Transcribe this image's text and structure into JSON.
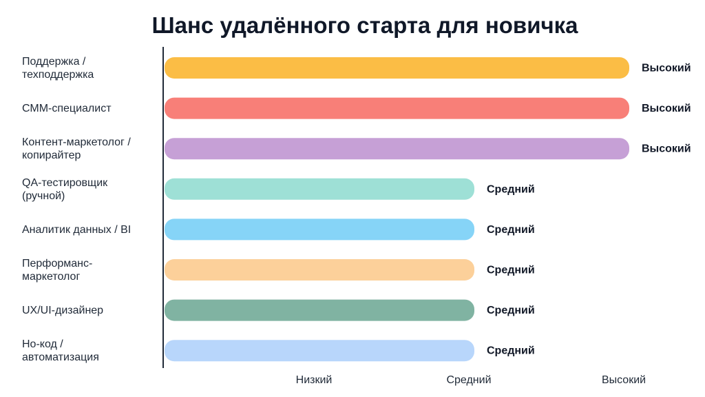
{
  "chart_data": {
    "type": "bar",
    "orientation": "horizontal",
    "title": "Шанс удалённого старта для новичка",
    "xlabel": "",
    "ylabel": "",
    "grid": false,
    "legend": "none",
    "categories": [
      [
        "Поддержка /",
        "техподдержка"
      ],
      [
        "СММ-специалист"
      ],
      [
        "Контент-маркетолог /",
        "копирайтер"
      ],
      [
        "QA-тестировщик",
        "(ручной)"
      ],
      [
        "Аналитик данных / BI"
      ],
      [
        "Перформанс-",
        "маркетолог"
      ],
      [
        "UX/UI-дизайнер"
      ],
      [
        "Но-код /",
        "автоматизация"
      ]
    ],
    "values": [
      3,
      3,
      3,
      2,
      2,
      2,
      2,
      2
    ],
    "value_labels": [
      "Высокий",
      "Высокий",
      "Высокий",
      "Средний",
      "Средний",
      "Средний",
      "Средний",
      "Средний"
    ],
    "colors": [
      "#fbbd45",
      "#f87f78",
      "#c6a0d6",
      "#9ee0d6",
      "#86d4f7",
      "#fcd09a",
      "#80b3a2",
      "#b8d6fb"
    ],
    "x_ticks": [
      {
        "value": 1,
        "label": "Низкий"
      },
      {
        "value": 2,
        "label": "Средний"
      },
      {
        "value": 3,
        "label": "Высокий"
      }
    ],
    "xlim": [
      0,
      3
    ]
  }
}
